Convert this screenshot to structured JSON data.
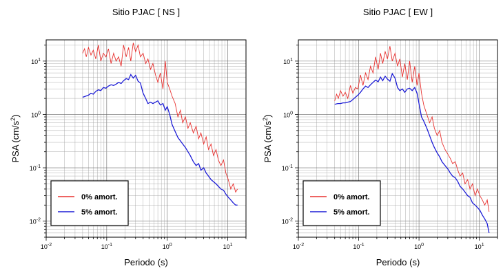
{
  "chart_data": [
    {
      "type": "line",
      "title": "Sitio PJAC [ NS ]",
      "xlabel": "Periodo (s)",
      "ylabel": "PSA (cm/s",
      "ylabel_sup": "2",
      "ylabel_close": ")",
      "xscale": "log",
      "yscale": "log",
      "xlim": [
        0.01,
        20
      ],
      "ylim": [
        0.005,
        25
      ],
      "x_ticks": [
        {
          "base": "10",
          "exp": "-2"
        },
        {
          "base": "10",
          "exp": "-1"
        },
        {
          "base": "10",
          "exp": "0"
        },
        {
          "base": "10",
          "exp": "1"
        }
      ],
      "y_ticks": [
        {
          "base": "10",
          "exp": "-2"
        },
        {
          "base": "10",
          "exp": "-1"
        },
        {
          "base": "10",
          "exp": "0"
        },
        {
          "base": "10",
          "exp": "1"
        }
      ],
      "grid": true,
      "legend_position": "bottom-left",
      "series": [
        {
          "name": "0% amort.",
          "color": "#e8302e",
          "x": [
            0.04,
            0.043,
            0.046,
            0.05,
            0.055,
            0.06,
            0.066,
            0.073,
            0.08,
            0.088,
            0.097,
            0.107,
            0.118,
            0.13,
            0.143,
            0.157,
            0.173,
            0.19,
            0.21,
            0.23,
            0.25,
            0.275,
            0.3,
            0.33,
            0.36,
            0.4,
            0.44,
            0.48,
            0.53,
            0.58,
            0.64,
            0.7,
            0.77,
            0.85,
            0.93,
            1.0,
            1.1,
            1.2,
            1.35,
            1.5,
            1.65,
            1.8,
            2.0,
            2.2,
            2.4,
            2.7,
            3.0,
            3.3,
            3.6,
            4.0,
            4.4,
            4.8,
            5.3,
            5.8,
            6.4,
            7.0,
            7.7,
            8.5,
            9.3,
            10.2,
            11.2,
            12.3,
            13.5,
            14.5
          ],
          "values": [
            14,
            17,
            12,
            18,
            13,
            16,
            11,
            20,
            10,
            14,
            12,
            17,
            9,
            14,
            10,
            12,
            8,
            20,
            12,
            18,
            10,
            22,
            15,
            20,
            12,
            14,
            9,
            11,
            7,
            9,
            5.5,
            4,
            6,
            3,
            10,
            4,
            3,
            2.2,
            1.6,
            0.9,
            1.2,
            0.7,
            0.9,
            0.55,
            0.7,
            0.45,
            0.6,
            0.35,
            0.45,
            0.28,
            0.38,
            0.22,
            0.28,
            0.17,
            0.22,
            0.14,
            0.11,
            0.14,
            0.08,
            0.06,
            0.04,
            0.05,
            0.035,
            0.04
          ]
        },
        {
          "name": "5% amort.",
          "color": "#1d1dd6",
          "x": [
            0.04,
            0.045,
            0.05,
            0.055,
            0.06,
            0.066,
            0.073,
            0.08,
            0.088,
            0.097,
            0.107,
            0.118,
            0.13,
            0.143,
            0.157,
            0.173,
            0.19,
            0.21,
            0.23,
            0.25,
            0.275,
            0.3,
            0.33,
            0.36,
            0.4,
            0.44,
            0.48,
            0.53,
            0.58,
            0.64,
            0.7,
            0.77,
            0.85,
            0.93,
            1.0,
            1.1,
            1.2,
            1.35,
            1.5,
            1.65,
            1.8,
            2.0,
            2.2,
            2.4,
            2.7,
            3.0,
            3.3,
            3.6,
            4.0,
            4.4,
            4.8,
            5.3,
            5.8,
            6.4,
            7.0,
            7.7,
            8.5,
            9.3,
            10.2,
            11.2,
            12.3,
            13.5,
            14.5
          ],
          "values": [
            2.1,
            2.2,
            2.3,
            2.5,
            2.4,
            2.7,
            2.9,
            2.8,
            3.2,
            3.1,
            3.4,
            3.6,
            3.5,
            3.7,
            4.0,
            3.8,
            4.3,
            4.7,
            4.5,
            5.6,
            4.8,
            5.4,
            4.2,
            3.9,
            2.5,
            2.0,
            1.6,
            1.7,
            1.6,
            1.7,
            1.8,
            1.5,
            1.6,
            1.2,
            1.4,
            1.0,
            0.65,
            0.48,
            0.37,
            0.32,
            0.28,
            0.24,
            0.2,
            0.17,
            0.13,
            0.11,
            0.12,
            0.09,
            0.1,
            0.08,
            0.07,
            0.06,
            0.055,
            0.05,
            0.045,
            0.04,
            0.038,
            0.032,
            0.028,
            0.025,
            0.022,
            0.02,
            0.02
          ]
        }
      ]
    },
    {
      "type": "line",
      "title": "Sitio PJAC [ EW ]",
      "xlabel": "Periodo (s)",
      "ylabel": "PSA (cm/s",
      "ylabel_sup": "2",
      "ylabel_close": ")",
      "xscale": "log",
      "yscale": "log",
      "xlim": [
        0.01,
        20
      ],
      "ylim": [
        0.005,
        25
      ],
      "x_ticks": [
        {
          "base": "10",
          "exp": "-2"
        },
        {
          "base": "10",
          "exp": "-1"
        },
        {
          "base": "10",
          "exp": "0"
        },
        {
          "base": "10",
          "exp": "1"
        }
      ],
      "y_ticks": [
        {
          "base": "10",
          "exp": "-2"
        },
        {
          "base": "10",
          "exp": "-1"
        },
        {
          "base": "10",
          "exp": "0"
        },
        {
          "base": "10",
          "exp": "1"
        }
      ],
      "grid": true,
      "legend_position": "bottom-left",
      "series": [
        {
          "name": "0% amort.",
          "color": "#e8302e",
          "x": [
            0.04,
            0.043,
            0.046,
            0.05,
            0.055,
            0.06,
            0.066,
            0.073,
            0.08,
            0.088,
            0.097,
            0.107,
            0.118,
            0.13,
            0.143,
            0.157,
            0.173,
            0.19,
            0.21,
            0.23,
            0.25,
            0.275,
            0.3,
            0.33,
            0.36,
            0.4,
            0.44,
            0.48,
            0.53,
            0.58,
            0.64,
            0.7,
            0.77,
            0.85,
            0.93,
            1.0,
            1.1,
            1.2,
            1.35,
            1.5,
            1.65,
            1.8,
            2.0,
            2.2,
            2.4,
            2.7,
            3.0,
            3.3,
            3.6,
            4.0,
            4.4,
            4.8,
            5.3,
            5.8,
            6.4,
            7.0,
            7.7,
            8.5,
            9.3,
            10.2,
            11.2,
            12.3,
            13.5,
            14.5
          ],
          "values": [
            1.8,
            2.4,
            2.0,
            2.8,
            2.2,
            2.6,
            2.0,
            3.5,
            2.5,
            3.2,
            3.0,
            5.5,
            3.5,
            6.0,
            4.5,
            8.0,
            6.0,
            12,
            7.0,
            14,
            9.0,
            15,
            11,
            19,
            10,
            14,
            8.0,
            11,
            5.0,
            9.0,
            4.5,
            10,
            4.0,
            8.0,
            3.5,
            6.0,
            2.5,
            1.5,
            1.0,
            0.7,
            0.9,
            0.55,
            0.4,
            0.5,
            0.3,
            0.22,
            0.18,
            0.15,
            0.12,
            0.13,
            0.09,
            0.07,
            0.08,
            0.05,
            0.06,
            0.04,
            0.05,
            0.03,
            0.04,
            0.03,
            0.025,
            0.02,
            0.025,
            0.015
          ]
        },
        {
          "name": "5% amort.",
          "color": "#1d1dd6",
          "x": [
            0.04,
            0.045,
            0.05,
            0.055,
            0.06,
            0.066,
            0.073,
            0.08,
            0.088,
            0.097,
            0.107,
            0.118,
            0.13,
            0.143,
            0.157,
            0.173,
            0.19,
            0.21,
            0.23,
            0.25,
            0.275,
            0.3,
            0.33,
            0.36,
            0.4,
            0.44,
            0.48,
            0.53,
            0.58,
            0.64,
            0.7,
            0.77,
            0.85,
            0.93,
            1.0,
            1.1,
            1.2,
            1.35,
            1.5,
            1.65,
            1.8,
            2.0,
            2.2,
            2.4,
            2.7,
            3.0,
            3.3,
            3.6,
            4.0,
            4.4,
            4.8,
            5.3,
            5.8,
            6.4,
            7.0,
            7.7,
            8.5,
            9.3,
            10.2,
            11.2,
            12.3,
            13.5,
            14.5
          ],
          "values": [
            1.55,
            1.6,
            1.6,
            1.65,
            1.65,
            1.7,
            1.75,
            1.9,
            2.1,
            2.3,
            2.6,
            3.0,
            3.4,
            3.2,
            3.6,
            4.0,
            4.4,
            4.1,
            5.0,
            4.3,
            5.2,
            4.6,
            4.2,
            5.8,
            4.8,
            3.2,
            2.8,
            3.0,
            2.6,
            3.0,
            3.1,
            2.8,
            3.2,
            2.5,
            1.6,
            0.9,
            0.75,
            0.55,
            0.4,
            0.3,
            0.24,
            0.19,
            0.16,
            0.13,
            0.11,
            0.095,
            0.08,
            0.07,
            0.065,
            0.055,
            0.045,
            0.04,
            0.035,
            0.03,
            0.028,
            0.022,
            0.02,
            0.018,
            0.016,
            0.013,
            0.011,
            0.009,
            0.006
          ]
        }
      ]
    }
  ]
}
